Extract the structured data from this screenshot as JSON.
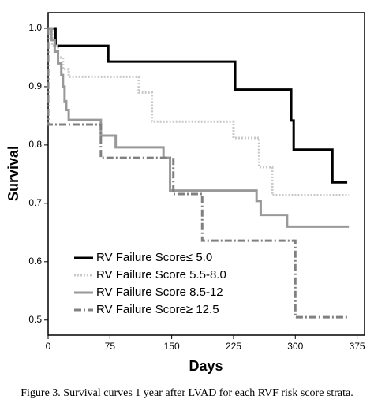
{
  "chart_data": {
    "type": "line",
    "x_label": "Days",
    "y_label": "Survival",
    "caption": "Figure 3. Survival curves 1 year after LVAD for each RVF risk score strata.",
    "xlim": [
      0,
      384
    ],
    "ylim": [
      0.474,
      1.027
    ],
    "xticks": [
      0,
      75,
      150,
      225,
      300,
      375
    ],
    "yticks": [
      {
        "value": 1,
        "label": "1.0"
      },
      0.9,
      0.8,
      0.7,
      0.6,
      0.5
    ],
    "legend": "lower left",
    "series": [
      {
        "name": "RV Failure Score≤ 5.0",
        "color": "#000000",
        "dash": "solid",
        "x": [
          0,
          9,
          9,
          73,
          73,
          227,
          227,
          295,
          295,
          298,
          298,
          345,
          345,
          363
        ],
        "values": [
          1,
          1,
          0.97,
          0.97,
          0.943,
          0.943,
          0.895,
          0.895,
          0.842,
          0.842,
          0.792,
          0.792,
          0.736,
          0.736
        ]
      },
      {
        "name": "RV Failure Score 5.5-8.0",
        "color": "#c8c8c8",
        "dash": "dotted",
        "x": [
          0,
          5,
          5,
          12,
          12,
          18,
          18,
          25,
          25,
          110,
          110,
          126,
          126,
          225,
          225,
          256,
          256,
          272,
          272,
          365
        ],
        "values": [
          1,
          1,
          0.97,
          0.97,
          0.95,
          0.95,
          0.93,
          0.93,
          0.917,
          0.917,
          0.89,
          0.89,
          0.84,
          0.84,
          0.812,
          0.812,
          0.762,
          0.762,
          0.714,
          0.714
        ]
      },
      {
        "name": "RV Failure Score 8.5-12",
        "color": "#999999",
        "dash": "solid",
        "x": [
          0,
          4,
          4,
          8,
          8,
          12,
          12,
          16,
          16,
          18,
          18,
          20,
          20,
          22,
          22,
          25,
          25,
          64,
          64,
          82,
          82,
          140,
          140,
          148,
          148,
          253,
          253,
          258,
          258,
          290,
          290,
          365
        ],
        "values": [
          1,
          1,
          0.98,
          0.98,
          0.96,
          0.96,
          0.94,
          0.94,
          0.92,
          0.92,
          0.9,
          0.9,
          0.875,
          0.875,
          0.86,
          0.86,
          0.843,
          0.843,
          0.816,
          0.816,
          0.796,
          0.796,
          0.778,
          0.778,
          0.722,
          0.722,
          0.704,
          0.704,
          0.68,
          0.68,
          0.66,
          0.66
        ]
      },
      {
        "name": "RV Failure Score≥ 12.5",
        "color": "#808080",
        "dash": "dashdot",
        "x": [
          0,
          0,
          64,
          64,
          152,
          152,
          187,
          187,
          300,
          300,
          365
        ],
        "values": [
          1,
          0.835,
          0.835,
          0.778,
          0.778,
          0.716,
          0.716,
          0.636,
          0.636,
          0.505,
          0.505
        ]
      }
    ]
  }
}
